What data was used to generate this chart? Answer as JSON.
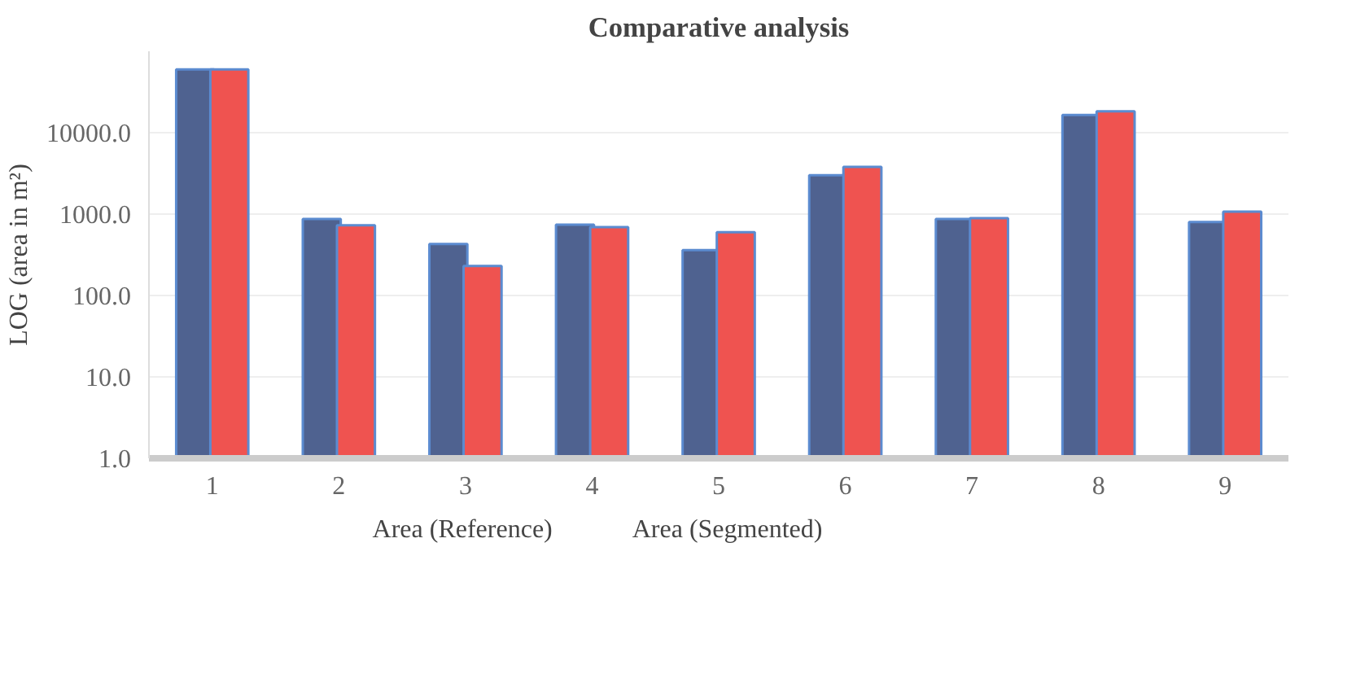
{
  "chart_data": {
    "type": "bar",
    "title": "Comparative analysis",
    "ylabel": "LOG (area in m²)",
    "categories": [
      "1",
      "2",
      "3",
      "4",
      "5",
      "6",
      "7",
      "8",
      "9"
    ],
    "series": [
      {
        "name": "Area (Reference)",
        "color": "#4f6290",
        "values": [
          60000,
          870,
          430,
          740,
          360,
          3000,
          870,
          16500,
          800
        ]
      },
      {
        "name": "Area (Segmented)",
        "color": "#ef5350",
        "values": [
          60000,
          730,
          230,
          690,
          600,
          3800,
          890,
          18300,
          1070
        ]
      }
    ],
    "log": "y",
    "ylim": [
      1,
      100000
    ],
    "yticks": [
      {
        "value": 1,
        "label": "1.0"
      },
      {
        "value": 10,
        "label": "10.0"
      },
      {
        "value": 100,
        "label": "100.0"
      },
      {
        "value": 1000,
        "label": "1000.0"
      },
      {
        "value": 10000,
        "label": "10000.0"
      }
    ],
    "grid": "y",
    "legend": "bottom"
  }
}
